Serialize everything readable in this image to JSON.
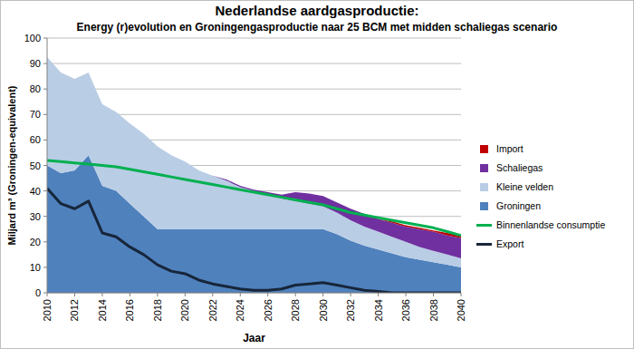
{
  "chart_data": {
    "type": "area",
    "title": "Nederlandse aardgasproductie:",
    "subtitle": "Energy (r)evolution en Groningengasproductie naar 25 BCM met midden schaliegas scenario",
    "x_label": "Jaar",
    "y_label": "Miljard m³ (Groningen-equivalent)",
    "stacked": true,
    "grid": true,
    "legend": "right",
    "x": [
      2010,
      2011,
      2012,
      2013,
      2014,
      2015,
      2016,
      2017,
      2018,
      2019,
      2020,
      2021,
      2022,
      2023,
      2024,
      2025,
      2026,
      2027,
      2028,
      2029,
      2030,
      2031,
      2032,
      2033,
      2034,
      2035,
      2036,
      2037,
      2038,
      2039,
      2040
    ],
    "xlim": [
      2010,
      2040
    ],
    "xticks": [
      2010,
      2012,
      2014,
      2016,
      2018,
      2020,
      2022,
      2024,
      2026,
      2028,
      2030,
      2032,
      2034,
      2036,
      2038,
      2040
    ],
    "ylim": [
      0,
      100
    ],
    "yticks": [
      0,
      10,
      20,
      30,
      40,
      50,
      60,
      70,
      80,
      90,
      100
    ],
    "series": [
      {
        "name": "Groningen",
        "type": "area",
        "color": "#4f81bd",
        "values": [
          50,
          47,
          48,
          54,
          42,
          40,
          35,
          30,
          25,
          25,
          25,
          25,
          25,
          25,
          25,
          25,
          25,
          25,
          25,
          25,
          25,
          23,
          20.5,
          18.5,
          17,
          15.5,
          14,
          13,
          12,
          11,
          10
        ]
      },
      {
        "name": "Kleine velden",
        "type": "area",
        "color": "#b9cde5",
        "values": [
          42.5,
          39.5,
          36,
          32.5,
          32,
          31,
          31.5,
          32.5,
          32.5,
          29,
          26.5,
          23,
          21,
          19,
          16.5,
          15,
          13.5,
          12,
          11,
          10,
          9,
          8.5,
          8,
          7.5,
          7,
          6.5,
          6,
          5,
          4.5,
          4,
          3.5
        ]
      },
      {
        "name": "Schaliegas",
        "type": "area",
        "color": "#7030a0",
        "values": [
          0,
          0,
          0,
          0,
          0,
          0,
          0,
          0,
          0,
          0,
          0,
          0,
          0,
          0.5,
          0.5,
          0.5,
          1,
          1.5,
          3.5,
          4,
          4,
          4,
          4.5,
          5,
          5,
          5.5,
          6,
          7,
          7.5,
          7.5,
          8
        ]
      },
      {
        "name": "Import",
        "type": "area",
        "color": "#c00000",
        "values": [
          0,
          0,
          0,
          0,
          0,
          0,
          0,
          0,
          0,
          0,
          0,
          0,
          0,
          0,
          0,
          0,
          0,
          0,
          0,
          0,
          0,
          0,
          0,
          0,
          0,
          0.5,
          0.5,
          0.5,
          0.5,
          1,
          1
        ]
      },
      {
        "name": "Binnenlandse consumptie",
        "type": "line",
        "color": "#00b050",
        "values": [
          52,
          51.5,
          51,
          50.5,
          50,
          49.5,
          48.5,
          47.5,
          46.5,
          45.5,
          44.5,
          43.5,
          42.5,
          41.5,
          40.5,
          39.5,
          38.5,
          37.5,
          36.5,
          35.5,
          34.5,
          33,
          31.5,
          30.5,
          29.5,
          28.5,
          27.5,
          26.5,
          25.5,
          24,
          22.5
        ]
      },
      {
        "name": "Export",
        "type": "line",
        "color": "#17263a",
        "values": [
          41,
          35,
          33,
          36,
          23.5,
          22,
          18,
          15,
          11,
          8.5,
          7.5,
          5,
          3.5,
          2.5,
          1.5,
          1,
          1,
          1.5,
          3,
          3.5,
          4,
          3,
          2,
          1,
          0.5,
          0,
          0,
          0,
          0,
          0,
          0
        ]
      }
    ]
  }
}
